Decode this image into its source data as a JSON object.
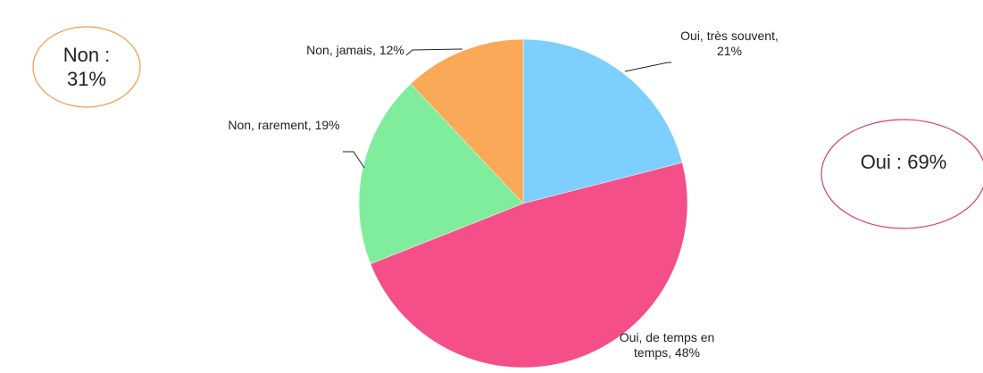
{
  "chart_data": {
    "type": "pie",
    "categories": [
      "Oui, très souvent",
      "Oui, de temps en temps",
      "Non, rarement",
      "Non, jamais"
    ],
    "values": [
      21,
      48,
      19,
      12
    ],
    "value_labels": [
      "Oui, très souvent, 21%",
      "Oui, de temps en temps, 48%",
      "Non, rarement, 19%",
      "Non, jamais, 12%"
    ],
    "colors": [
      "#7dd0fd",
      "#f54f89",
      "#80ed9d",
      "#f9a958"
    ],
    "annotations": [
      "Non : 31%",
      "Oui : 69%"
    ]
  }
}
